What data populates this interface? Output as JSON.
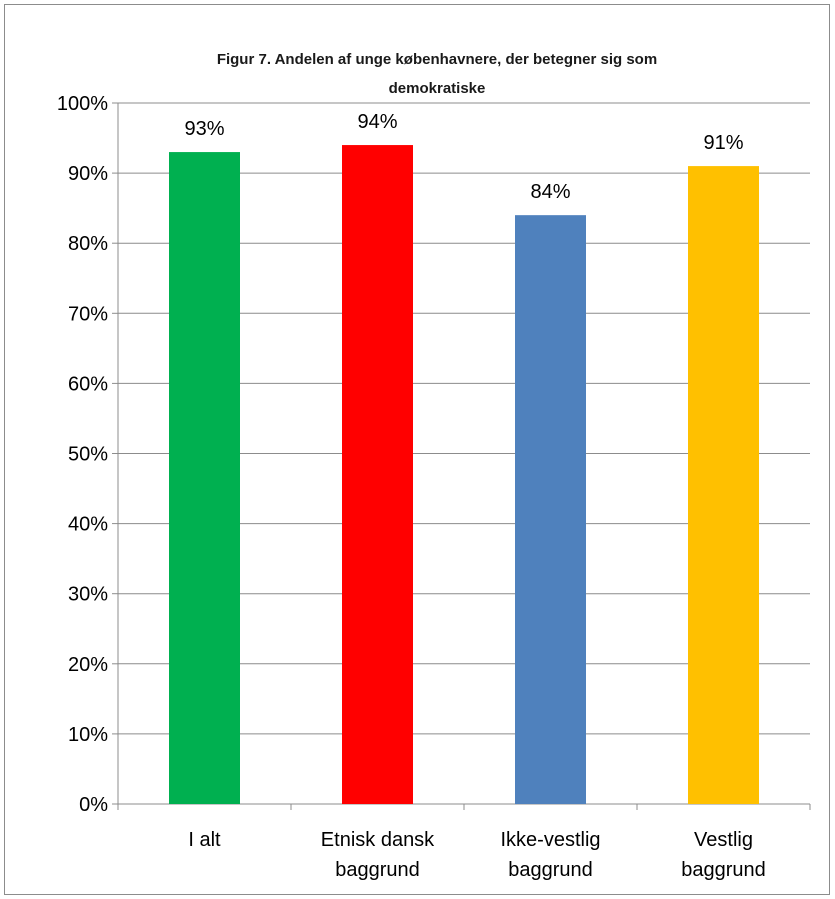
{
  "chart_data": {
    "type": "bar",
    "title_lines": [
      "Figur 7. Andelen af unge københavnere, der betegner sig som",
      "demokratiske"
    ],
    "categories": [
      [
        "I alt"
      ],
      [
        "Etnisk dansk",
        "baggrund"
      ],
      [
        "Ikke-vestlig",
        "baggrund"
      ],
      [
        "Vestlig",
        "baggrund"
      ]
    ],
    "values": [
      93,
      94,
      84,
      91
    ],
    "data_labels": [
      "93%",
      "94%",
      "84%",
      "91%"
    ],
    "colors": [
      "#00b050",
      "#ff0000",
      "#4f81bd",
      "#ffc000"
    ],
    "ylim": [
      0,
      100
    ],
    "y_ticks": [
      0,
      10,
      20,
      30,
      40,
      50,
      60,
      70,
      80,
      90,
      100
    ],
    "y_tick_labels": [
      "0%",
      "10%",
      "20%",
      "30%",
      "40%",
      "50%",
      "60%",
      "70%",
      "80%",
      "90%",
      "100%"
    ],
    "grid": true,
    "legend": "none"
  }
}
